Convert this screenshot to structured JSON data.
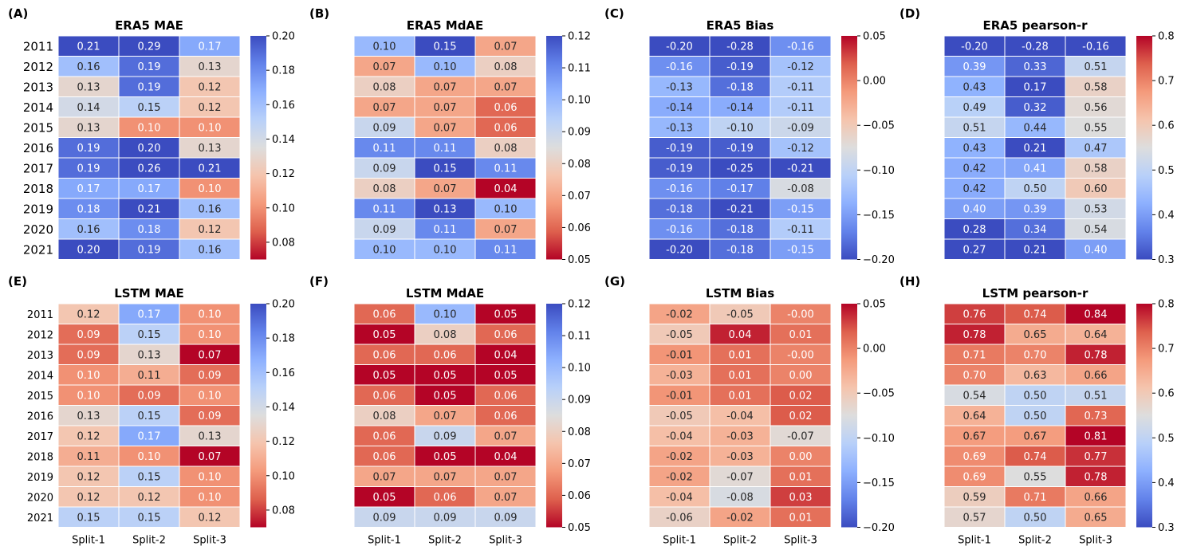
{
  "x_categories": [
    "Split-1",
    "Split-2",
    "Split-3"
  ],
  "years": [
    "2011",
    "2012",
    "2013",
    "2014",
    "2015",
    "2016",
    "2017",
    "2018",
    "2019",
    "2020",
    "2021"
  ],
  "chart_data": [
    {
      "type": "heatmap",
      "id": "A",
      "label": "(A)",
      "title": "ERA5 MAE",
      "colormap": "coolwarm",
      "reversed": true,
      "vmin": 0.07,
      "vmax": 0.2,
      "colorbar_ticks": [
        "0.08",
        "0.10",
        "0.12",
        "0.14",
        "0.16",
        "0.18",
        "0.20"
      ],
      "values": [
        [
          0.21,
          0.29,
          0.17
        ],
        [
          0.16,
          0.19,
          0.13
        ],
        [
          0.13,
          0.19,
          0.12
        ],
        [
          0.14,
          0.15,
          0.12
        ],
        [
          0.13,
          0.1,
          0.1
        ],
        [
          0.19,
          0.2,
          0.13
        ],
        [
          0.19,
          0.26,
          0.21
        ],
        [
          0.17,
          0.17,
          0.1
        ],
        [
          0.18,
          0.21,
          0.16
        ],
        [
          0.16,
          0.18,
          0.12
        ],
        [
          0.2,
          0.19,
          0.16
        ]
      ]
    },
    {
      "type": "heatmap",
      "id": "B",
      "label": "(B)",
      "title": "ERA5 MdAE",
      "colormap": "coolwarm",
      "reversed": true,
      "vmin": 0.05,
      "vmax": 0.12,
      "colorbar_ticks": [
        "0.05",
        "0.06",
        "0.07",
        "0.08",
        "0.09",
        "0.10",
        "0.11",
        "0.12"
      ],
      "values": [
        [
          0.1,
          0.15,
          0.07
        ],
        [
          0.07,
          0.1,
          0.08
        ],
        [
          0.08,
          0.07,
          0.07
        ],
        [
          0.07,
          0.07,
          0.06
        ],
        [
          0.09,
          0.07,
          0.06
        ],
        [
          0.11,
          0.11,
          0.08
        ],
        [
          0.09,
          0.15,
          0.11
        ],
        [
          0.08,
          0.07,
          0.04
        ],
        [
          0.11,
          0.13,
          0.1
        ],
        [
          0.09,
          0.11,
          0.07
        ],
        [
          0.1,
          0.1,
          0.11
        ]
      ]
    },
    {
      "type": "heatmap",
      "id": "C",
      "label": "(C)",
      "title": "ERA5 Bias",
      "colormap": "coolwarm",
      "reversed": false,
      "vmin": -0.2,
      "vmax": 0.05,
      "colorbar_ticks": [
        "−0.20",
        "−0.15",
        "−0.10",
        "−0.05",
        "0.00",
        "0.05"
      ],
      "values": [
        [
          -0.2,
          -0.28,
          -0.16
        ],
        [
          -0.16,
          -0.19,
          -0.12
        ],
        [
          -0.13,
          -0.18,
          -0.11
        ],
        [
          -0.14,
          -0.14,
          -0.11
        ],
        [
          -0.13,
          -0.1,
          -0.09
        ],
        [
          -0.19,
          -0.19,
          -0.12
        ],
        [
          -0.19,
          -0.25,
          -0.21
        ],
        [
          -0.16,
          -0.17,
          -0.08
        ],
        [
          -0.18,
          -0.21,
          -0.15
        ],
        [
          -0.16,
          -0.18,
          -0.11
        ],
        [
          -0.2,
          -0.18,
          -0.15
        ]
      ]
    },
    {
      "type": "heatmap",
      "id": "D",
      "label": "(D)",
      "title": "ERA5 pearson-r",
      "colormap": "coolwarm",
      "reversed": false,
      "vmin": 0.3,
      "vmax": 0.8,
      "colorbar_ticks": [
        "0.3",
        "0.4",
        "0.5",
        "0.6",
        "0.7",
        "0.8"
      ],
      "values": [
        [
          -0.2,
          -0.28,
          -0.16
        ],
        [
          0.39,
          0.33,
          0.51
        ],
        [
          0.43,
          0.17,
          0.58
        ],
        [
          0.49,
          0.32,
          0.56
        ],
        [
          0.51,
          0.44,
          0.55
        ],
        [
          0.43,
          0.21,
          0.47
        ],
        [
          0.42,
          0.41,
          0.58
        ],
        [
          0.42,
          0.5,
          0.6
        ],
        [
          0.4,
          0.39,
          0.53
        ],
        [
          0.28,
          0.34,
          0.54
        ],
        [
          0.27,
          0.21,
          0.4
        ]
      ]
    },
    {
      "type": "heatmap",
      "id": "E",
      "label": "(E)",
      "title": "LSTM MAE",
      "colormap": "coolwarm",
      "reversed": true,
      "vmin": 0.07,
      "vmax": 0.2,
      "colorbar_ticks": [
        "0.08",
        "0.10",
        "0.12",
        "0.14",
        "0.16",
        "0.18",
        "0.20"
      ],
      "values": [
        [
          0.12,
          0.17,
          0.1
        ],
        [
          0.09,
          0.15,
          0.1
        ],
        [
          0.09,
          0.13,
          0.07
        ],
        [
          0.1,
          0.11,
          0.09
        ],
        [
          0.1,
          0.09,
          0.1
        ],
        [
          0.13,
          0.15,
          0.09
        ],
        [
          0.12,
          0.17,
          0.13
        ],
        [
          0.11,
          0.1,
          0.07
        ],
        [
          0.12,
          0.15,
          0.1
        ],
        [
          0.12,
          0.12,
          0.1
        ],
        [
          0.15,
          0.15,
          0.12
        ]
      ]
    },
    {
      "type": "heatmap",
      "id": "F",
      "label": "(F)",
      "title": "LSTM MdAE",
      "colormap": "coolwarm",
      "reversed": true,
      "vmin": 0.05,
      "vmax": 0.12,
      "colorbar_ticks": [
        "0.05",
        "0.06",
        "0.07",
        "0.08",
        "0.09",
        "0.10",
        "0.11",
        "0.12"
      ],
      "values": [
        [
          0.06,
          0.1,
          0.05
        ],
        [
          0.05,
          0.08,
          0.06
        ],
        [
          0.06,
          0.06,
          0.04
        ],
        [
          0.05,
          0.05,
          0.05
        ],
        [
          0.06,
          0.05,
          0.06
        ],
        [
          0.08,
          0.07,
          0.06
        ],
        [
          0.06,
          0.09,
          0.07
        ],
        [
          0.06,
          0.05,
          0.04
        ],
        [
          0.07,
          0.07,
          0.07
        ],
        [
          0.05,
          0.06,
          0.07
        ],
        [
          0.09,
          0.09,
          0.09
        ]
      ]
    },
    {
      "type": "heatmap",
      "id": "G",
      "label": "(G)",
      "title": "LSTM Bias",
      "colormap": "coolwarm",
      "reversed": false,
      "vmin": -0.2,
      "vmax": 0.05,
      "colorbar_ticks": [
        "−0.20",
        "−0.15",
        "−0.10",
        "−0.05",
        "0.00",
        "0.05"
      ],
      "values": [
        [
          -0.02,
          -0.05,
          -0.0
        ],
        [
          -0.05,
          0.04,
          0.01
        ],
        [
          -0.01,
          0.01,
          -0.0
        ],
        [
          -0.03,
          0.01,
          0.0
        ],
        [
          -0.01,
          0.01,
          0.02
        ],
        [
          -0.05,
          -0.04,
          0.02
        ],
        [
          -0.04,
          -0.03,
          -0.07
        ],
        [
          -0.02,
          -0.03,
          0.0
        ],
        [
          -0.02,
          -0.07,
          0.01
        ],
        [
          -0.04,
          -0.08,
          0.03
        ],
        [
          -0.06,
          -0.02,
          0.01
        ]
      ]
    },
    {
      "type": "heatmap",
      "id": "H",
      "label": "(H)",
      "title": "LSTM pearson-r",
      "colormap": "coolwarm",
      "reversed": false,
      "vmin": 0.3,
      "vmax": 0.8,
      "colorbar_ticks": [
        "0.3",
        "0.4",
        "0.5",
        "0.6",
        "0.7",
        "0.8"
      ],
      "values": [
        [
          0.76,
          0.74,
          0.84
        ],
        [
          0.78,
          0.65,
          0.64
        ],
        [
          0.71,
          0.7,
          0.78
        ],
        [
          0.7,
          0.63,
          0.66
        ],
        [
          0.54,
          0.5,
          0.51
        ],
        [
          0.64,
          0.5,
          0.73
        ],
        [
          0.67,
          0.67,
          0.81
        ],
        [
          0.69,
          0.74,
          0.77
        ],
        [
          0.69,
          0.55,
          0.78
        ],
        [
          0.59,
          0.71,
          0.66
        ],
        [
          0.57,
          0.5,
          0.65
        ]
      ]
    }
  ]
}
